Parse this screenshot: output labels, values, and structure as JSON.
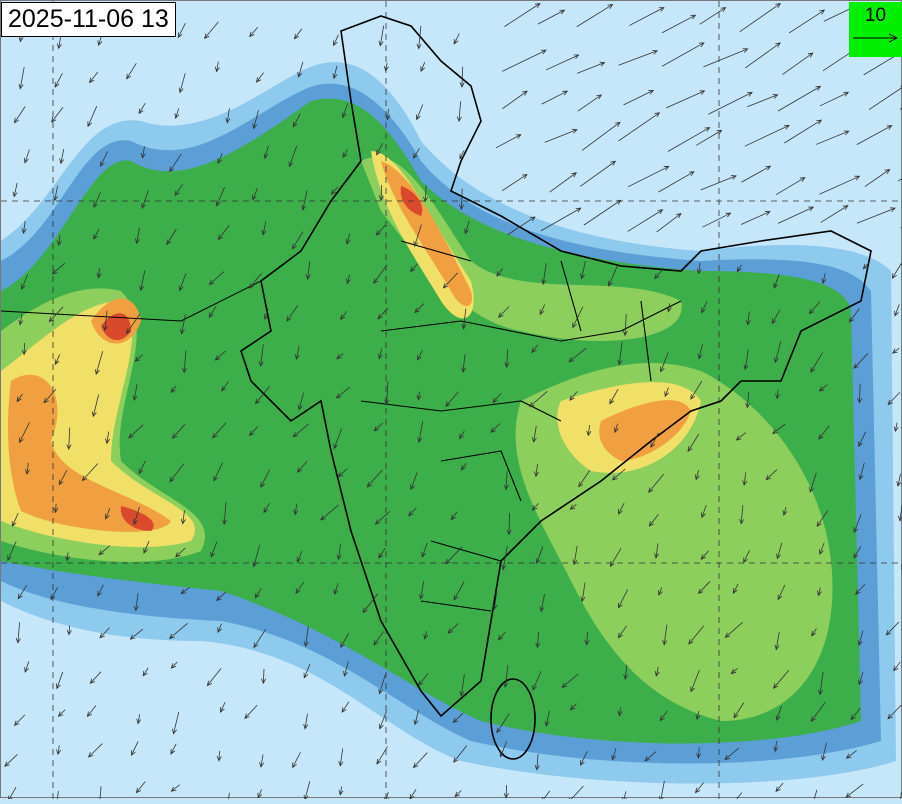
{
  "timestamp": "2025-11-06 13",
  "wind_legend": {
    "value": "10",
    "background": "#00f000"
  },
  "colors": {
    "background": "#c6e7f9",
    "levels": [
      "#8ec9ee",
      "#5b9fd6",
      "#3cae4a",
      "#8ccf5c",
      "#f0e068",
      "#f0a040",
      "#d94a2c"
    ]
  }
}
